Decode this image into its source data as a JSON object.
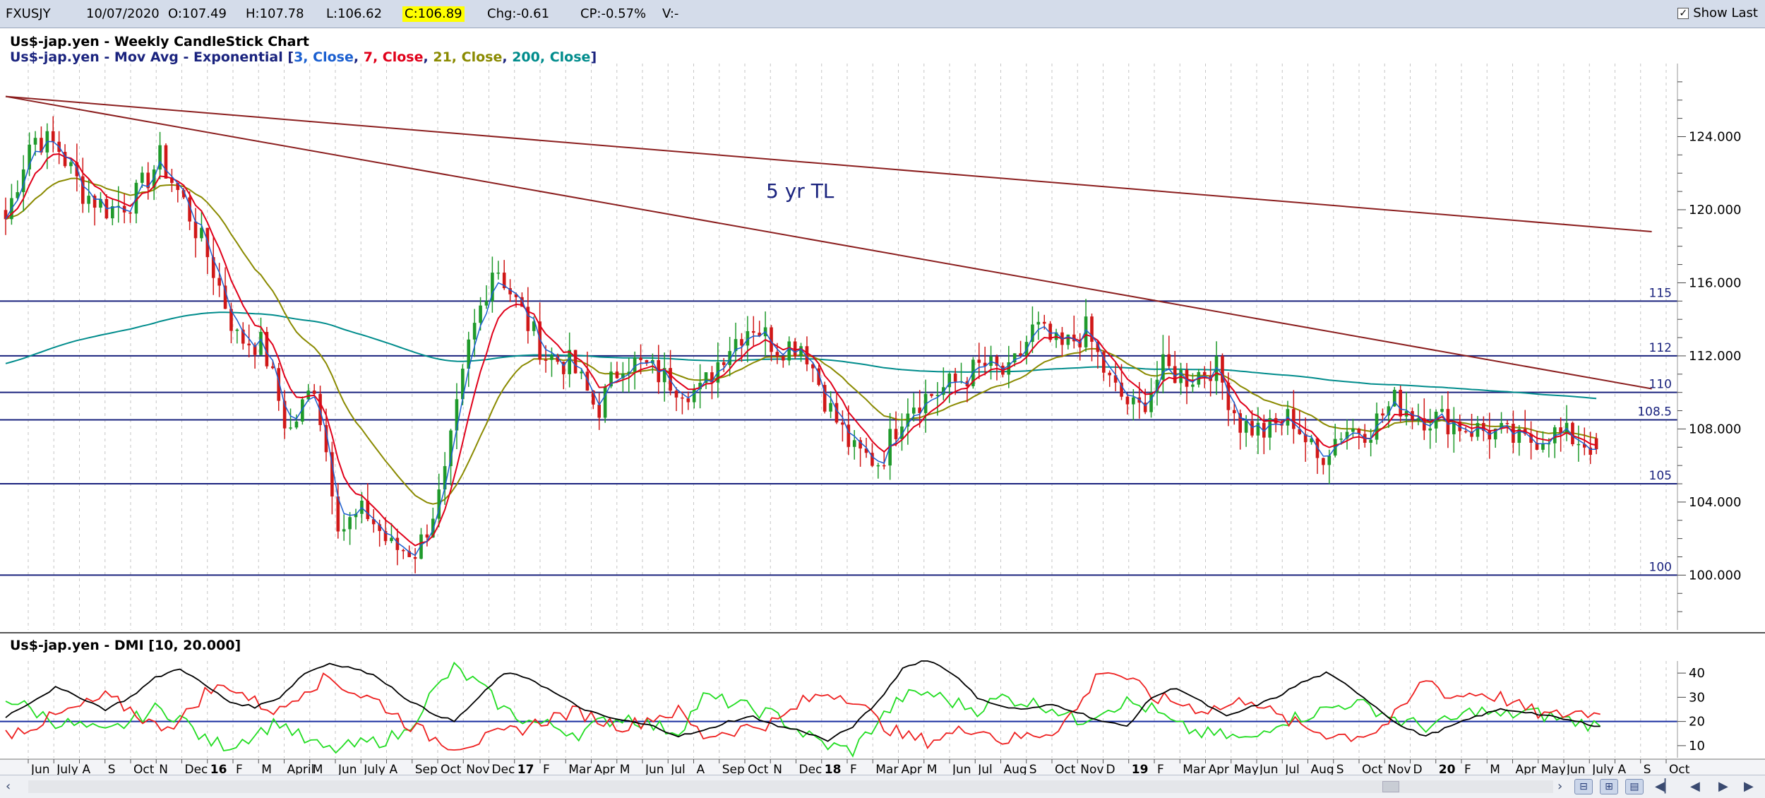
{
  "toolbar": {
    "symbol": "FXUSJY",
    "date": "10/07/2020",
    "open": "O:107.49",
    "high": "H:107.78",
    "low": "L:106.62",
    "close": "C:106.89",
    "change": "Chg:-0.61",
    "change_pct": "CP:-0.57%",
    "volume": "V:-",
    "show_last_label": "Show Last",
    "show_last_checked": true
  },
  "price_panel": {
    "title": "Us$-jap.yen - Weekly CandleStick Chart",
    "ma_prefix": "Us$-jap.yen - Mov Avg - Exponential [",
    "ma_params": [
      {
        "period": "3",
        "field": "Close",
        "color": "#1a5fd0"
      },
      {
        "period": "7",
        "field": "Close",
        "color": "#e0001a"
      },
      {
        "period": "21",
        "field": "Close",
        "color": "#8a8a00"
      },
      {
        "period": "200",
        "field": "Close",
        "color": "#008c8c"
      }
    ],
    "annotation": "5 yr TL",
    "hline_labels": [
      "115",
      "112",
      "110",
      "108.5",
      "105",
      "100"
    ],
    "y_ticks": [
      "124.000",
      "120.000",
      "116.000",
      "112.000",
      "108.000",
      "104.000",
      "100.000"
    ]
  },
  "dmi_panel": {
    "title": "Us$-jap.yen - DMI [10, 20.000]",
    "y_ticks": [
      "40",
      "30",
      "20",
      "10"
    ]
  },
  "x_axis_labels": [
    "Jun",
    "July",
    "A",
    "S",
    "Oct",
    "N",
    "Dec",
    "16",
    "F",
    "M",
    "April",
    "M",
    "Jun",
    "July",
    "A",
    "Sep",
    "Oct",
    "Nov",
    "Dec",
    "17",
    "F",
    "Mar",
    "Apr",
    "M",
    "Jun",
    "Jul",
    "A",
    "Sep",
    "Oct",
    "N",
    "Dec",
    "18",
    "F",
    "Mar",
    "Apr",
    "M",
    "Jun",
    "Jul",
    "Aug",
    "S",
    "Oct",
    "Nov",
    "D",
    "19",
    "F",
    "Mar",
    "Apr",
    "May",
    "Jun",
    "Jul",
    "Aug",
    "S",
    "Oct",
    "Nov",
    "D",
    "20",
    "F",
    "M",
    "Apr",
    "May",
    "Jun",
    "July",
    "A",
    "S",
    "Oct"
  ],
  "colors": {
    "ema3": "#1a5fd0",
    "ema7": "#e0001a",
    "ema21": "#8a8a00",
    "ema200": "#008c8c",
    "candle_up": "#1f9a2b",
    "candle_down": "#d01818",
    "hline": "#1a237e",
    "trendline": "#8b1e1e",
    "plus_di": "#22dd22",
    "minus_di": "#ee2020",
    "adx": "#000000",
    "dmi_threshold": "#1a2fa0"
  },
  "chart_data": {
    "type": "candlestick",
    "title": "Us$-jap.yen - Weekly CandleStick Chart",
    "x_range": [
      "2015-05",
      "2020-10"
    ],
    "ylim": [
      97,
      128
    ],
    "horizontal_levels": [
      115,
      112,
      110,
      108.5,
      105,
      100
    ],
    "trendlines": [
      {
        "name": "5 yr TL",
        "points": [
          [
            "2015-05",
            126.2
          ],
          [
            "2020-09",
            110.2
          ]
        ]
      },
      {
        "name": "",
        "points": [
          [
            "2015-05",
            126.2
          ],
          [
            "2020-09",
            118.8
          ]
        ]
      }
    ],
    "last_bar": {
      "date": "10/07/2020",
      "open": 107.49,
      "high": 107.78,
      "low": 106.62,
      "close": 106.89
    },
    "price_path": [
      [
        "2015-05",
        119.5
      ],
      [
        "2015-06",
        124.0
      ],
      [
        "2015-07",
        123.5
      ],
      [
        "2015-08",
        121.0
      ],
      [
        "2015-09",
        120.0
      ],
      [
        "2015-10",
        120.6
      ],
      [
        "2015-11",
        122.8
      ],
      [
        "2015-12",
        120.2
      ],
      [
        "2016-01",
        117.0
      ],
      [
        "2016-02",
        113.0
      ],
      [
        "2016-03",
        112.6
      ],
      [
        "2016-04",
        107.7
      ],
      [
        "2016-05",
        110.5
      ],
      [
        "2016-06",
        102.5
      ],
      [
        "2016-07",
        103.5
      ],
      [
        "2016-08",
        101.5
      ],
      [
        "2016-09",
        101.3
      ],
      [
        "2016-10",
        104.8
      ],
      [
        "2016-11",
        112.5
      ],
      [
        "2016-12",
        117.2
      ],
      [
        "2017-01",
        114.5
      ],
      [
        "2017-02",
        112.0
      ],
      [
        "2017-03",
        111.5
      ],
      [
        "2017-04",
        109.0
      ],
      [
        "2017-05",
        111.8
      ],
      [
        "2017-06",
        111.3
      ],
      [
        "2017-07",
        110.5
      ],
      [
        "2017-08",
        110.0
      ],
      [
        "2017-09",
        112.4
      ],
      [
        "2017-10",
        113.8
      ],
      [
        "2017-11",
        112.5
      ],
      [
        "2017-12",
        112.7
      ],
      [
        "2018-01",
        109.2
      ],
      [
        "2018-02",
        106.7
      ],
      [
        "2018-03",
        106.2
      ],
      [
        "2018-04",
        109.3
      ],
      [
        "2018-05",
        109.9
      ],
      [
        "2018-06",
        110.6
      ],
      [
        "2018-07",
        111.5
      ],
      [
        "2018-08",
        110.9
      ],
      [
        "2018-09",
        113.6
      ],
      [
        "2018-10",
        112.3
      ],
      [
        "2018-11",
        113.4
      ],
      [
        "2018-12",
        110.3
      ],
      [
        "2019-01",
        108.9
      ],
      [
        "2019-02",
        111.3
      ],
      [
        "2019-03",
        110.8
      ],
      [
        "2019-04",
        111.5
      ],
      [
        "2019-05",
        108.3
      ],
      [
        "2019-06",
        107.8
      ],
      [
        "2019-07",
        108.7
      ],
      [
        "2019-08",
        106.3
      ],
      [
        "2019-09",
        108.0
      ],
      [
        "2019-10",
        108.0
      ],
      [
        "2019-11",
        109.5
      ],
      [
        "2019-12",
        108.7
      ],
      [
        "2020-01",
        108.5
      ],
      [
        "2020-02",
        108.0
      ],
      [
        "2020-03",
        107.8
      ],
      [
        "2020-04",
        107.2
      ],
      [
        "2020-05",
        107.8
      ],
      [
        "2020-06",
        107.5
      ],
      [
        "2020-07",
        106.9
      ]
    ],
    "dmi": {
      "params": "[10, 20.000]",
      "threshold": 20,
      "ylim": [
        5,
        45
      ],
      "adx_path": [
        22,
        28,
        34,
        30,
        25,
        30,
        38,
        42,
        35,
        28,
        26,
        30,
        40,
        44,
        42,
        38,
        30,
        24,
        20,
        30,
        40,
        38,
        32,
        26,
        22,
        20,
        18,
        14,
        16,
        20,
        22,
        18,
        16,
        12,
        18,
        28,
        42,
        46,
        40,
        30,
        26,
        25,
        27,
        24,
        20,
        18,
        30,
        34,
        28,
        22,
        26,
        30,
        36,
        40,
        34,
        26,
        18,
        14,
        18,
        22,
        25,
        24,
        22,
        20,
        18
      ],
      "plus_di_path": [
        30,
        25,
        20,
        18,
        15,
        20,
        25,
        22,
        12,
        10,
        15,
        20,
        12,
        8,
        10,
        12,
        15,
        30,
        42,
        35,
        25,
        20,
        18,
        15,
        20,
        22,
        18,
        16,
        30,
        28,
        25,
        22,
        15,
        10,
        8,
        20,
        30,
        32,
        28,
        25,
        30,
        28,
        26,
        20,
        25,
        28,
        25,
        18,
        15,
        14,
        12,
        20,
        22,
        25,
        28,
        25,
        20,
        18,
        20,
        25,
        22,
        24,
        22,
        20,
        18
      ],
      "minus_di_path": [
        15,
        18,
        22,
        26,
        30,
        25,
        18,
        20,
        32,
        35,
        28,
        24,
        34,
        38,
        32,
        28,
        20,
        14,
        10,
        12,
        15,
        18,
        22,
        24,
        20,
        18,
        22,
        24,
        14,
        16,
        18,
        20,
        28,
        32,
        30,
        20,
        14,
        12,
        15,
        18,
        12,
        14,
        16,
        25,
        42,
        38,
        30,
        28,
        25,
        26,
        30,
        22,
        18,
        15,
        14,
        16,
        24,
        38,
        30,
        32,
        30,
        25,
        22,
        24,
        23
      ]
    }
  }
}
